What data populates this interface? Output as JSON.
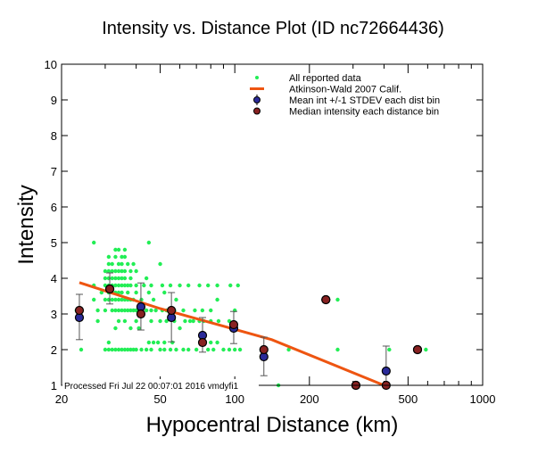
{
  "chart_data": {
    "type": "scatter",
    "title": "Intensity vs. Distance Plot (ID nc72664436)",
    "xlabel": "Hypocentral Distance (km)",
    "ylabel": "Intensity",
    "xscale": "log",
    "xlim": [
      20,
      1000
    ],
    "ylim": [
      1,
      10
    ],
    "xticks": [
      20,
      50,
      100,
      200,
      500,
      1000
    ],
    "yticks": [
      1,
      2,
      3,
      4,
      5,
      6,
      7,
      8,
      9,
      10
    ],
    "grid": false,
    "legend_position": "top-right",
    "legend": [
      {
        "label": "All reported data",
        "marker": "green-dot"
      },
      {
        "label": "Atkinson-Wald 2007 Calif.",
        "marker": "orange-line"
      },
      {
        "label": "Mean int +/-1 STDEV each dist bin",
        "marker": "blue-circle-errorbar"
      },
      {
        "label": "Median intensity each distance bin",
        "marker": "red-circle"
      }
    ],
    "footnote": "Processed Fri Jul 22 00:07:01 2016 vmdyfi1",
    "colors": {
      "data": "#22ee55",
      "model": "#ee5511",
      "mean": "#222288",
      "median": "#882222"
    },
    "all_data": {
      "2.0": [
        24,
        30,
        31,
        32,
        33,
        34,
        35,
        36,
        37,
        38,
        39,
        40,
        42,
        44,
        46,
        50,
        52,
        55,
        58,
        62,
        65,
        70,
        78,
        82,
        90,
        95,
        100,
        105,
        165,
        260,
        420,
        590
      ],
      "2.2": [
        31,
        45,
        47,
        49,
        52,
        56,
        80,
        85
      ],
      "2.6": [
        33,
        38,
        41,
        60
      ],
      "2.8": [
        28,
        34,
        36,
        40,
        46,
        50,
        53,
        57,
        63,
        66,
        68,
        72,
        75,
        80,
        86,
        95
      ],
      "3.1": [
        23,
        28,
        30,
        32,
        33,
        34,
        35,
        36,
        37,
        38,
        39,
        40,
        41,
        42,
        44,
        46,
        48,
        51,
        53,
        57,
        62,
        69,
        74,
        80,
        100
      ],
      "3.4": [
        27,
        30,
        31,
        32,
        33,
        34,
        35,
        36,
        37,
        38,
        39,
        42,
        47,
        58,
        85,
        260
      ],
      "3.6": [
        29,
        31,
        33,
        34,
        35,
        37,
        40,
        45,
        52
      ],
      "3.8": [
        27,
        30,
        31,
        32,
        33,
        34,
        35,
        36,
        37,
        38,
        40,
        43,
        46,
        51,
        55,
        60,
        65,
        72,
        78,
        85,
        96,
        103
      ],
      "4.0": [
        30,
        31,
        32,
        33,
        34,
        35,
        36,
        38,
        44
      ],
      "4.2": [
        30,
        31,
        32,
        33,
        34,
        35,
        36,
        38,
        40
      ],
      "4.4": [
        31,
        32,
        34,
        35,
        37,
        39,
        50
      ],
      "4.6": [
        31,
        33,
        35,
        36
      ],
      "4.8": [
        33,
        34,
        36
      ],
      "5.0": [
        27,
        45
      ],
      "1.0": [
        150,
        400
      ]
    },
    "model_line": [
      [
        23.6,
        3.88
      ],
      [
        50,
        3.15
      ],
      [
        141,
        2.28
      ],
      [
        400,
        1.0
      ]
    ],
    "bins": [
      {
        "dist": 23.6,
        "mean": 2.9,
        "median": 3.1,
        "sd_low": 2.28,
        "sd_high": 3.55
      },
      {
        "dist": 31.3,
        "mean": 3.7,
        "median": 3.7,
        "sd_low": 3.28,
        "sd_high": 4.15
      },
      {
        "dist": 41.8,
        "mean": 3.2,
        "median": 3.0,
        "sd_low": 2.55,
        "sd_high": 3.87
      },
      {
        "dist": 55.5,
        "mean": 2.9,
        "median": 3.1,
        "sd_low": 2.22,
        "sd_high": 3.6
      },
      {
        "dist": 74.1,
        "mean": 2.4,
        "median": 2.2,
        "sd_low": 1.93,
        "sd_high": 2.9
      },
      {
        "dist": 99,
        "mean": 2.6,
        "median": 2.7,
        "sd_low": 2.17,
        "sd_high": 3.07
      },
      {
        "dist": 131,
        "mean": 1.8,
        "median": 2.0,
        "sd_low": 1.27,
        "sd_high": 2.35
      },
      {
        "dist": 233,
        "mean": 3.4,
        "median": 3.4,
        "sd_low": 3.4,
        "sd_high": 3.4
      },
      {
        "dist": 308,
        "mean": 1.0,
        "median": 1.0,
        "sd_low": 1.0,
        "sd_high": 1.0
      },
      {
        "dist": 408,
        "mean": 1.4,
        "median": 1.0,
        "sd_low": 1.0,
        "sd_high": 2.1
      },
      {
        "dist": 546,
        "mean": 2.0,
        "median": 2.0,
        "sd_low": 2.0,
        "sd_high": 2.0
      }
    ]
  }
}
